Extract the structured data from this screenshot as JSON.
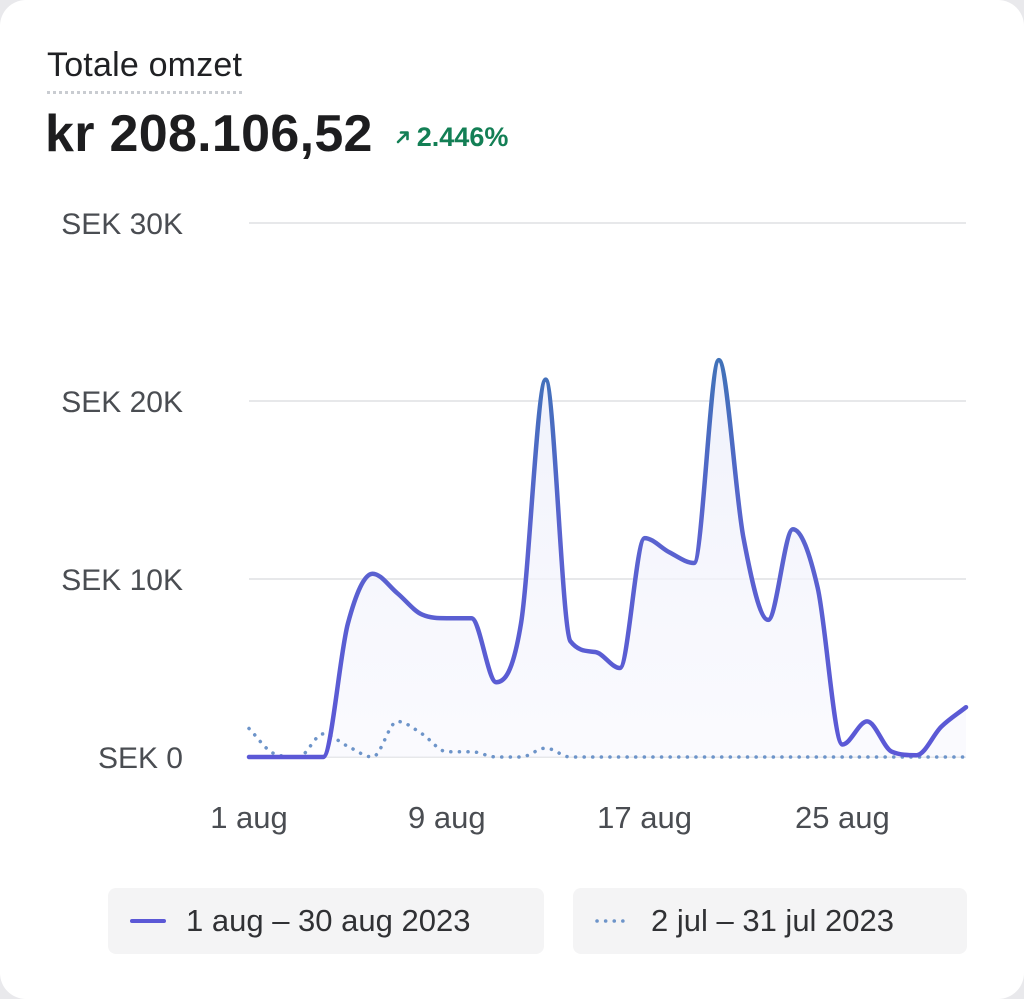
{
  "card": {
    "title": "Totale omzet",
    "total_value": "kr 208.106,52",
    "change_value": "2.446%",
    "change_direction_icon": "arrow-up-right-icon"
  },
  "colors": {
    "current_line": "#5b58d6",
    "current_line_top": "#3f72b8",
    "previous_line": "#6d94c9",
    "gridline": "#e7e8ea",
    "axis_text": "#4a4d52",
    "positive": "#137f55"
  },
  "chart_data": {
    "type": "line",
    "title": "Totale omzet",
    "x_ticks": [
      "1 aug",
      "9 aug",
      "17 aug",
      "25 aug"
    ],
    "y_ticks": [
      "SEK 0",
      "SEK 10K",
      "SEK 20K",
      "SEK 30K"
    ],
    "y_tick_values": [
      0,
      10000,
      20000,
      30000
    ],
    "ylim": [
      0,
      30000
    ],
    "grid": true,
    "legend_position": "bottom",
    "series": [
      {
        "name": "1 aug – 30 aug 2023",
        "style": "solid",
        "x": [
          "1 aug",
          "2 aug",
          "3 aug",
          "4 aug",
          "5 aug",
          "6 aug",
          "7 aug",
          "8 aug",
          "9 aug",
          "10 aug",
          "11 aug",
          "12 aug",
          "13 aug",
          "14 aug",
          "15 aug",
          "16 aug",
          "17 aug",
          "18 aug",
          "19 aug",
          "20 aug",
          "21 aug",
          "22 aug",
          "23 aug",
          "24 aug",
          "25 aug",
          "26 aug",
          "27 aug",
          "28 aug",
          "29 aug",
          "30 aug"
        ],
        "values": [
          0,
          0,
          0,
          0,
          7500,
          10300,
          9200,
          8000,
          7800,
          7800,
          4200,
          7500,
          21200,
          6500,
          5900,
          5000,
          12300,
          11500,
          10900,
          22300,
          12300,
          7700,
          12800,
          9500,
          700,
          2000,
          300,
          100,
          1700,
          2800
        ]
      },
      {
        "name": "2 jul – 31 jul 2023",
        "style": "dotted",
        "x": [
          "1 aug",
          "2 aug",
          "3 aug",
          "4 aug",
          "5 aug",
          "6 aug",
          "7 aug",
          "8 aug",
          "9 aug",
          "10 aug",
          "11 aug",
          "12 aug",
          "13 aug",
          "14 aug",
          "15 aug",
          "16 aug",
          "17 aug",
          "18 aug",
          "19 aug",
          "20 aug",
          "21 aug",
          "22 aug",
          "23 aug",
          "24 aug",
          "25 aug",
          "26 aug",
          "27 aug",
          "28 aug",
          "29 aug",
          "30 aug"
        ],
        "values": [
          1600,
          200,
          0,
          1300,
          600,
          0,
          2000,
          1300,
          300,
          300,
          0,
          0,
          500,
          0,
          0,
          0,
          0,
          0,
          0,
          0,
          0,
          0,
          0,
          0,
          0,
          0,
          0,
          0,
          0,
          0
        ]
      }
    ]
  }
}
